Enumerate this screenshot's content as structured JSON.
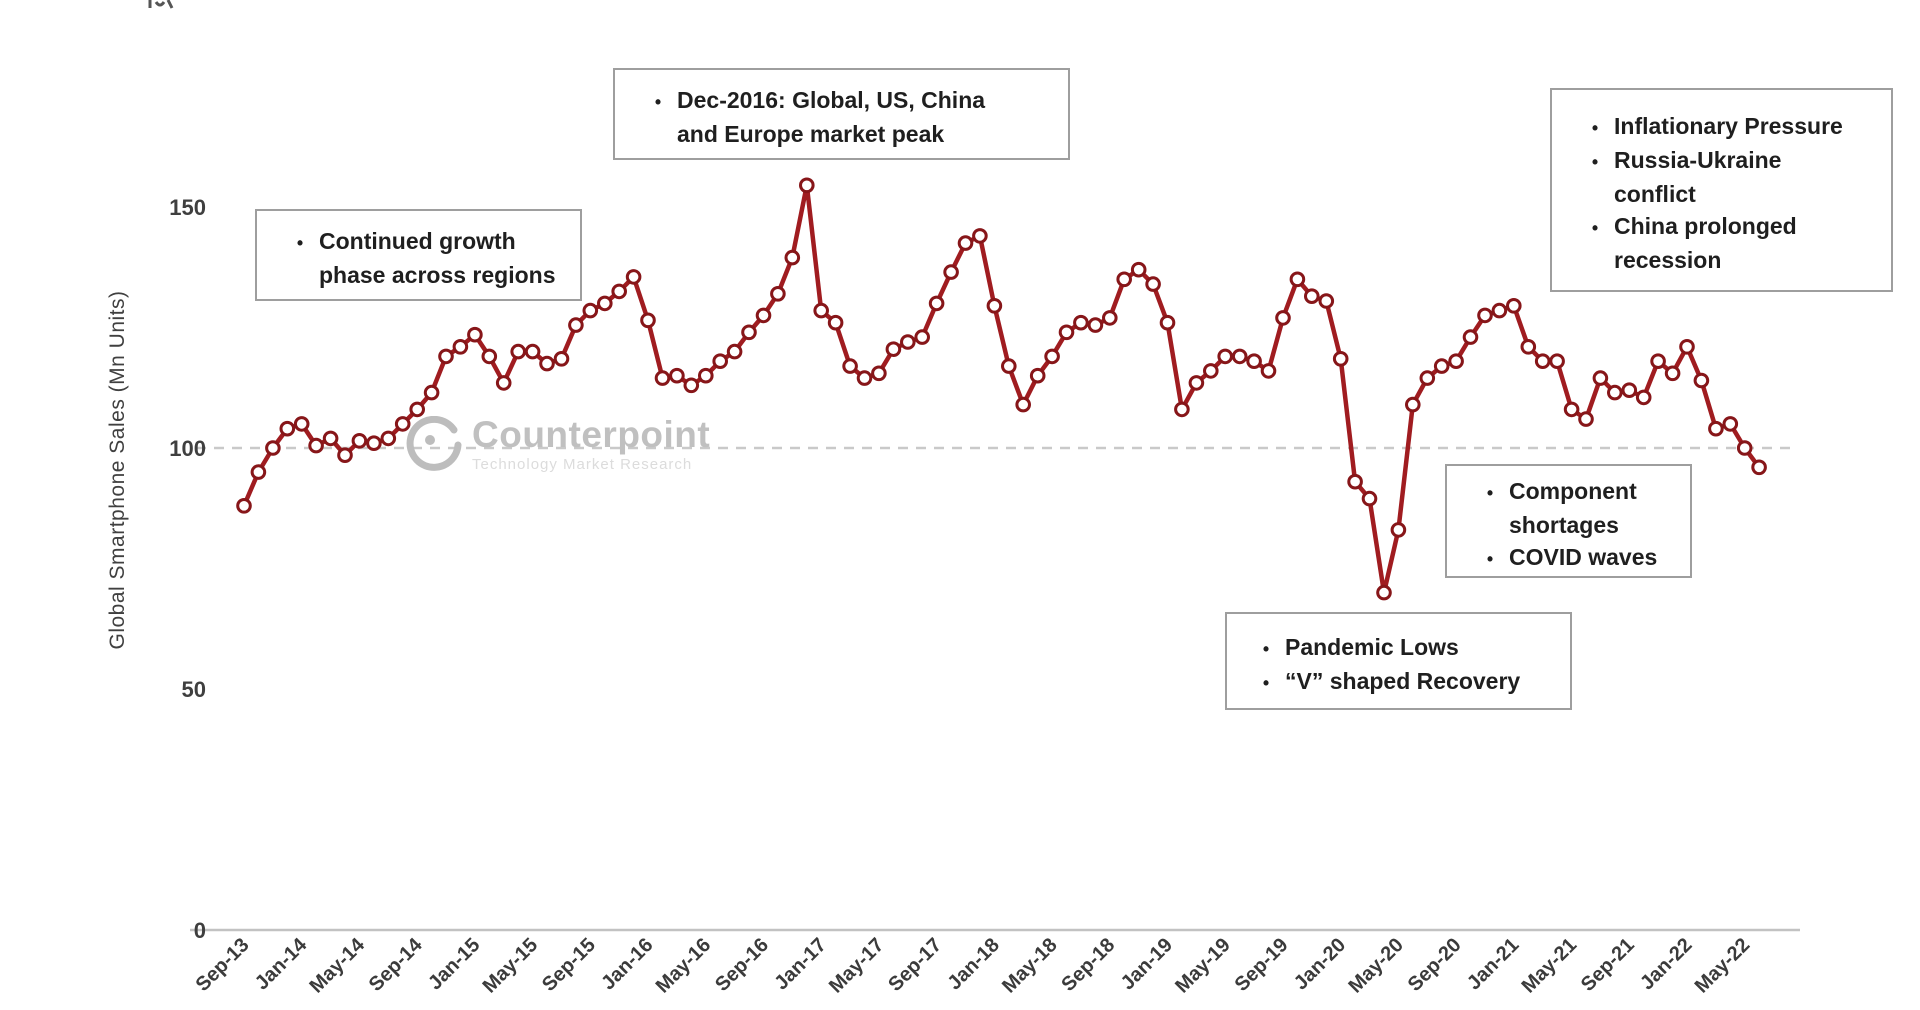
{
  "y_axis": {
    "title": "Global  Smartphone  Sales (Mn Units)",
    "ticks": [
      0,
      50,
      100,
      150
    ]
  },
  "reference_line": {
    "value": 100
  },
  "watermark": {
    "brand": "Counterpoint",
    "tagline": "Technology Market Research"
  },
  "colors": {
    "line": "#a01c20",
    "marker_ring": "#871619",
    "marker_fill": "#ffffff",
    "gridline": "#c9c9c9",
    "axis": "#c2c2c2",
    "tick_text": "#3f3f3f",
    "annotation_text": "#1f1f1f",
    "watermark_gray": "#c0c0c0"
  },
  "annotations": [
    {
      "id": "growth",
      "rows": [
        {
          "b": 1,
          "t": "Continued growth"
        },
        {
          "b": 0,
          "t": "phase across regions"
        }
      ]
    },
    {
      "id": "dec2016",
      "rows": [
        {
          "b": 1,
          "t": "Dec-2016: Global, US, China"
        },
        {
          "b": 0,
          "t": "and Europe market peak"
        }
      ]
    },
    {
      "id": "macro",
      "rows": [
        {
          "b": 1,
          "t": "Inflationary Pressure"
        },
        {
          "b": 1,
          "t": "Russia-Ukraine"
        },
        {
          "b": 0,
          "t": "conflict"
        },
        {
          "b": 1,
          "t": "China prolonged"
        },
        {
          "b": 0,
          "t": "recession"
        }
      ]
    },
    {
      "id": "shortages",
      "rows": [
        {
          "b": 1,
          "t": "Component"
        },
        {
          "b": 0,
          "t": "shortages"
        },
        {
          "b": 1,
          "t": "COVID waves"
        }
      ]
    },
    {
      "id": "pandemic",
      "rows": [
        {
          "b": 1,
          "t": "Pandemic Lows"
        },
        {
          "b": 1,
          "t": "“V” shaped Recovery"
        }
      ]
    }
  ],
  "chart_data": {
    "type": "line",
    "title": "",
    "xlabel": "",
    "ylabel": "Global Smartphone Sales (Mn Units)",
    "ylim": [
      0,
      160
    ],
    "grid": "dashed reference line at y=100 only",
    "legend": "none",
    "x_tick_labels": [
      "Sep-13",
      "Jan-14",
      "May-14",
      "Sep-14",
      "Jan-15",
      "May-15",
      "Sep-15",
      "Jan-16",
      "May-16",
      "Sep-16",
      "Jan-17",
      "May-17",
      "Sep-17",
      "Jan-18",
      "May-18",
      "Sep-18",
      "Jan-19",
      "May-19",
      "Sep-19",
      "Jan-20",
      "May-20",
      "Sep-20",
      "Jan-21",
      "May-21",
      "Sep-21",
      "Jan-22",
      "May-22"
    ],
    "x": [
      "Sep-13",
      "Oct-13",
      "Nov-13",
      "Dec-13",
      "Jan-14",
      "Feb-14",
      "Mar-14",
      "Apr-14",
      "May-14",
      "Jun-14",
      "Jul-14",
      "Aug-14",
      "Sep-14",
      "Oct-14",
      "Nov-14",
      "Dec-14",
      "Jan-15",
      "Feb-15",
      "Mar-15",
      "Apr-15",
      "May-15",
      "Jun-15",
      "Jul-15",
      "Aug-15",
      "Sep-15",
      "Oct-15",
      "Nov-15",
      "Dec-15",
      "Jan-16",
      "Feb-16",
      "Mar-16",
      "Apr-16",
      "May-16",
      "Jun-16",
      "Jul-16",
      "Aug-16",
      "Sep-16",
      "Oct-16",
      "Nov-16",
      "Dec-16",
      "Jan-17",
      "Feb-17",
      "Mar-17",
      "Apr-17",
      "May-17",
      "Jun-17",
      "Jul-17",
      "Aug-17",
      "Sep-17",
      "Oct-17",
      "Nov-17",
      "Dec-17",
      "Jan-18",
      "Feb-18",
      "Mar-18",
      "Apr-18",
      "May-18",
      "Jun-18",
      "Jul-18",
      "Aug-18",
      "Sep-18",
      "Oct-18",
      "Nov-18",
      "Dec-18",
      "Jan-19",
      "Feb-19",
      "Mar-19",
      "Apr-19",
      "May-19",
      "Jun-19",
      "Jul-19",
      "Aug-19",
      "Sep-19",
      "Oct-19",
      "Nov-19",
      "Dec-19",
      "Jan-20",
      "Feb-20",
      "Mar-20",
      "Apr-20",
      "May-20",
      "Jun-20",
      "Jul-20",
      "Aug-20",
      "Sep-20",
      "Oct-20",
      "Nov-20",
      "Dec-20",
      "Jan-21",
      "Feb-21",
      "Mar-21",
      "Apr-21",
      "May-21",
      "Jun-21",
      "Jul-21",
      "Aug-21",
      "Sep-21",
      "Oct-21",
      "Nov-21",
      "Dec-21",
      "Jan-22",
      "Feb-22",
      "Mar-22",
      "Apr-22",
      "May-22",
      "Jun-22"
    ],
    "values": [
      88,
      95,
      100,
      104,
      105,
      100.5,
      102,
      98.5,
      101.5,
      101,
      102,
      105,
      108,
      111.5,
      119,
      121,
      123.5,
      119,
      113.5,
      120,
      120,
      117.5,
      118.5,
      125.5,
      128.5,
      130,
      132.5,
      135.5,
      126.5,
      114.5,
      115,
      113,
      115,
      118,
      120,
      124,
      127.5,
      132,
      139.5,
      154.5,
      128.5,
      126,
      117,
      114.5,
      115.5,
      120.5,
      122,
      123,
      130,
      136.5,
      142.5,
      144,
      129.5,
      117,
      109,
      115,
      119,
      124,
      126,
      125.5,
      127,
      135,
      137,
      134,
      126,
      108,
      113.5,
      116,
      119,
      119,
      118,
      116,
      127,
      135,
      131.5,
      130.5,
      118.5,
      93,
      89.5,
      70,
      83,
      109,
      114.5,
      117,
      118,
      123,
      127.5,
      128.5,
      129.5,
      121,
      118,
      118,
      108,
      106,
      114.5,
      111.5,
      112,
      110.5,
      118,
      115.5,
      121,
      114,
      104,
      105,
      100,
      96
    ]
  }
}
